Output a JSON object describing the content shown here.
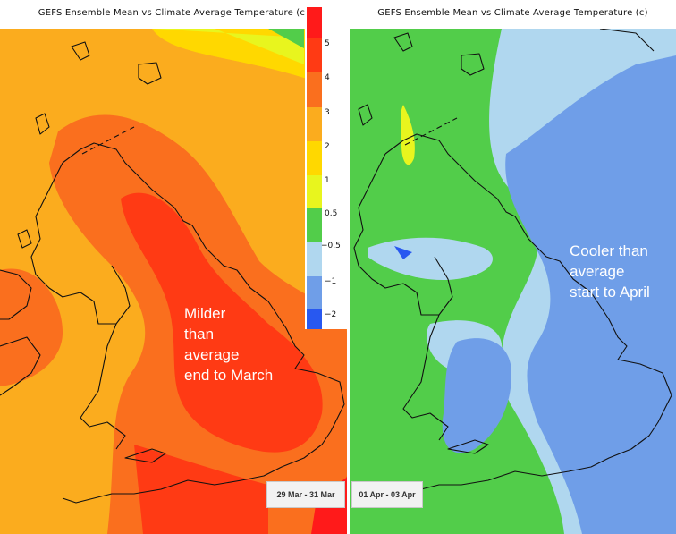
{
  "panels": [
    {
      "title": "GEFS Ensemble Mean vs Climate Average Temperature (c)",
      "caption_lines": [
        "Milder",
        "than",
        "average",
        "end to March"
      ]
    },
    {
      "title": "GEFS Ensemble Mean vs Climate Average Temperature (c)",
      "caption_lines": [
        "Cooler than",
        "average",
        "start to April"
      ]
    }
  ],
  "colorbar": {
    "labels": [
      "5",
      "4",
      "3",
      "2",
      "1",
      "0.5",
      "−0.5",
      "−1",
      "−2"
    ],
    "colors": {
      "gt5": "#ff1a1a",
      "c4_5": "#ff3a14",
      "c3_4": "#fa6f1e",
      "c2_3": "#fbac1e",
      "c1_2": "#ffd800",
      "c05_1": "#e8f51e",
      "c_05_05": "#52cd4a",
      "c_1_05": "#b0d7ef",
      "c_2_1": "#6f9ee8",
      "lt_2": "#2858f0"
    }
  },
  "tabs": [
    "29 Mar - 31 Mar",
    "01 Apr - 03 Apr"
  ]
}
